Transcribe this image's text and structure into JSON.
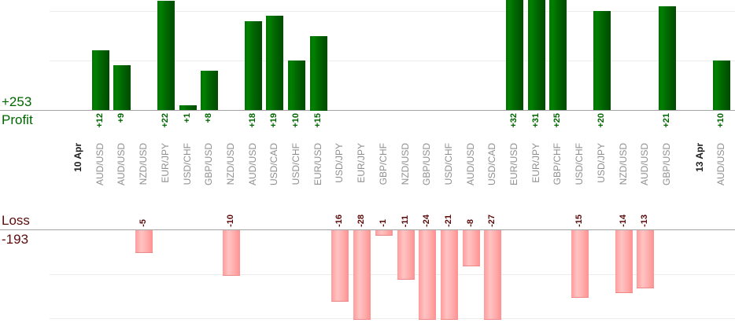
{
  "chart": {
    "profit_total": "+253",
    "profit_caption": "Profit",
    "loss_caption": "Loss",
    "loss_total": "-193"
  },
  "colors": {
    "profit_bar": "#006f00",
    "loss_bar": "#ffadad",
    "profit_text": "#006600",
    "loss_text": "#5b0b0b",
    "pair_label": "#8f8f8f",
    "date_label": "#1c1c1c"
  },
  "chart_data": {
    "type": "bar",
    "title": "",
    "xlabel": "",
    "ylabel": "",
    "legend": [],
    "grid": true,
    "profit_axis": {
      "total_label": "+253",
      "caption": "Profit",
      "gridline_values": [
        10,
        20
      ],
      "baseline": 0
    },
    "loss_axis": {
      "total_label": "-193",
      "caption": "Loss",
      "gridline_values": [
        10,
        20
      ],
      "baseline": 0
    },
    "entries": [
      {
        "type": "date",
        "label": "10 Apr"
      },
      {
        "type": "trade",
        "pair": "AUD/USD",
        "value": 12,
        "display": "+12"
      },
      {
        "type": "trade",
        "pair": "AUD/USD",
        "value": 9,
        "display": "+9"
      },
      {
        "type": "trade",
        "pair": "NZD/USD",
        "value": -5,
        "display": "-5"
      },
      {
        "type": "trade",
        "pair": "EUR/JPY",
        "value": 22,
        "display": "+22"
      },
      {
        "type": "trade",
        "pair": "USD/CHF",
        "value": 1,
        "display": "+1"
      },
      {
        "type": "trade",
        "pair": "GBP/USD",
        "value": 8,
        "display": "+8"
      },
      {
        "type": "trade",
        "pair": "NZD/USD",
        "value": -10,
        "display": "-10"
      },
      {
        "type": "trade",
        "pair": "AUD/USD",
        "value": 18,
        "display": "+18"
      },
      {
        "type": "trade",
        "pair": "USD/CAD",
        "value": 19,
        "display": "+19"
      },
      {
        "type": "trade",
        "pair": "USD/CHF",
        "value": 10,
        "display": "+10"
      },
      {
        "type": "trade",
        "pair": "EUR/USD",
        "value": 15,
        "display": "+15"
      },
      {
        "type": "trade",
        "pair": "USD/JPY",
        "value": -16,
        "display": "-16"
      },
      {
        "type": "trade",
        "pair": "EUR/JPY",
        "value": -28,
        "display": "-28"
      },
      {
        "type": "trade",
        "pair": "GBP/CHF",
        "value": -1,
        "display": "-1"
      },
      {
        "type": "trade",
        "pair": "NZD/USD",
        "value": -11,
        "display": "-11"
      },
      {
        "type": "trade",
        "pair": "GBP/USD",
        "value": -24,
        "display": "-24"
      },
      {
        "type": "trade",
        "pair": "USD/CHF",
        "value": -21,
        "display": "-21"
      },
      {
        "type": "trade",
        "pair": "AUD/USD",
        "value": -8,
        "display": "-8"
      },
      {
        "type": "trade",
        "pair": "USD/CAD",
        "value": -27,
        "display": "-27"
      },
      {
        "type": "trade",
        "pair": "EUR/USD",
        "value": 32,
        "display": "+32"
      },
      {
        "type": "trade",
        "pair": "EUR/JPY",
        "value": 31,
        "display": "+31"
      },
      {
        "type": "trade",
        "pair": "GBP/CHF",
        "value": 25,
        "display": "+25"
      },
      {
        "type": "trade",
        "pair": "USD/CHF",
        "value": -15,
        "display": "-15"
      },
      {
        "type": "trade",
        "pair": "USD/JPY",
        "value": 20,
        "display": "+20"
      },
      {
        "type": "trade",
        "pair": "NZD/USD",
        "value": -14,
        "display": "-14"
      },
      {
        "type": "trade",
        "pair": "AUD/USD",
        "value": -13,
        "display": "-13"
      },
      {
        "type": "trade",
        "pair": "GBP/USD",
        "value": 21,
        "display": "+21"
      },
      {
        "type": "date",
        "label": "13 Apr"
      },
      {
        "type": "trade",
        "pair": "AUD/USD",
        "value": 10,
        "display": "+10"
      }
    ]
  }
}
